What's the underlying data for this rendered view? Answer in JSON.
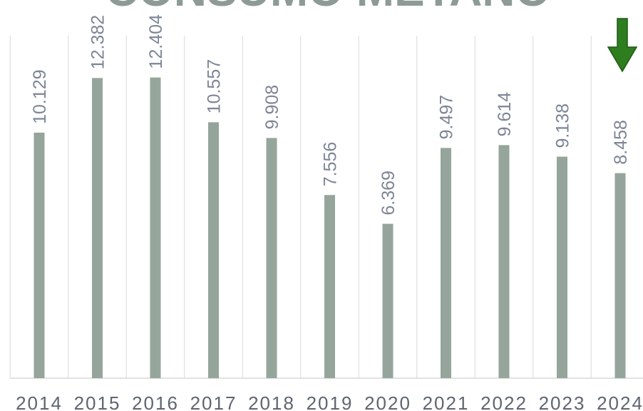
{
  "chart_data": {
    "type": "bar",
    "title": "CONSUMO METANO",
    "categories": [
      "2014",
      "2015",
      "2016",
      "2017",
      "2018",
      "2019",
      "2020",
      "2021",
      "2022",
      "2023",
      "2024"
    ],
    "values": [
      10.129,
      12.382,
      12.404,
      10.557,
      9.908,
      7.556,
      6.369,
      9.497,
      9.614,
      9.138,
      8.458
    ],
    "color": "#95a59b",
    "ylim": [
      0,
      15.6
    ]
  }
}
